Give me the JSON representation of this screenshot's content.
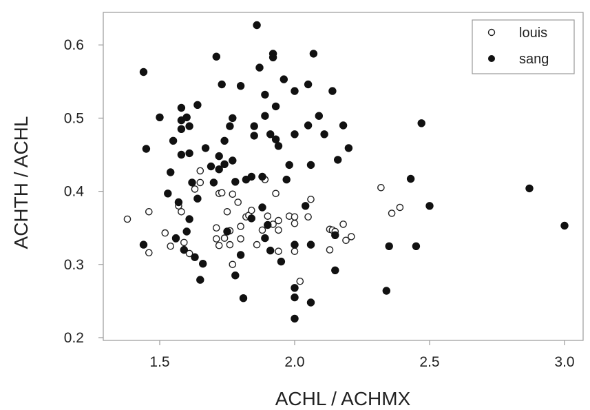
{
  "chart_data": {
    "type": "scatter",
    "xlabel": "ACHL / ACHMX",
    "ylabel": "ACHTH / ACHL",
    "xlim": [
      1.3,
      3.05
    ],
    "ylim": [
      0.2,
      0.65
    ],
    "x_ticks": [
      "1.5",
      "2.0",
      "2.5",
      "3.0"
    ],
    "y_ticks": [
      "0.2",
      "0.3",
      "0.4",
      "0.5",
      "0.6"
    ],
    "grid": false,
    "legend_position": "top-right",
    "series": [
      {
        "name": "louis",
        "marker": "open-circle",
        "color": "#222222",
        "points": [
          [
            1.38,
            0.362
          ],
          [
            1.46,
            0.372
          ],
          [
            1.46,
            0.316
          ],
          [
            1.52,
            0.343
          ],
          [
            1.54,
            0.325
          ],
          [
            1.56,
            0.335
          ],
          [
            1.57,
            0.38
          ],
          [
            1.58,
            0.372
          ],
          [
            1.59,
            0.33
          ],
          [
            1.61,
            0.315
          ],
          [
            1.63,
            0.403
          ],
          [
            1.65,
            0.428
          ],
          [
            1.65,
            0.412
          ],
          [
            1.71,
            0.35
          ],
          [
            1.71,
            0.335
          ],
          [
            1.72,
            0.326
          ],
          [
            1.72,
            0.397
          ],
          [
            1.73,
            0.398
          ],
          [
            1.74,
            0.336
          ],
          [
            1.75,
            0.372
          ],
          [
            1.76,
            0.346
          ],
          [
            1.76,
            0.327
          ],
          [
            1.77,
            0.396
          ],
          [
            1.77,
            0.3
          ],
          [
            1.79,
            0.385
          ],
          [
            1.8,
            0.352
          ],
          [
            1.8,
            0.335
          ],
          [
            1.82,
            0.365
          ],
          [
            1.83,
            0.367
          ],
          [
            1.84,
            0.374
          ],
          [
            1.86,
            0.327
          ],
          [
            1.88,
            0.347
          ],
          [
            1.89,
            0.416
          ],
          [
            1.9,
            0.366
          ],
          [
            1.92,
            0.355
          ],
          [
            1.93,
            0.397
          ],
          [
            1.94,
            0.36
          ],
          [
            1.94,
            0.347
          ],
          [
            1.94,
            0.318
          ],
          [
            1.98,
            0.366
          ],
          [
            2.0,
            0.365
          ],
          [
            2.0,
            0.356
          ],
          [
            2.0,
            0.318
          ],
          [
            2.02,
            0.277
          ],
          [
            2.05,
            0.365
          ],
          [
            2.06,
            0.389
          ],
          [
            2.13,
            0.348
          ],
          [
            2.13,
            0.32
          ],
          [
            2.14,
            0.347
          ],
          [
            2.15,
            0.345
          ],
          [
            2.18,
            0.355
          ],
          [
            2.19,
            0.333
          ],
          [
            2.21,
            0.338
          ],
          [
            2.32,
            0.405
          ],
          [
            2.36,
            0.37
          ],
          [
            2.39,
            0.378
          ]
        ]
      },
      {
        "name": "sang",
        "marker": "filled-circle",
        "color": "#111111",
        "points": [
          [
            1.44,
            0.327
          ],
          [
            1.44,
            0.563
          ],
          [
            1.45,
            0.458
          ],
          [
            1.5,
            0.501
          ],
          [
            1.53,
            0.397
          ],
          [
            1.54,
            0.426
          ],
          [
            1.55,
            0.469
          ],
          [
            1.56,
            0.336
          ],
          [
            1.57,
            0.385
          ],
          [
            1.58,
            0.514
          ],
          [
            1.58,
            0.497
          ],
          [
            1.58,
            0.485
          ],
          [
            1.58,
            0.45
          ],
          [
            1.59,
            0.32
          ],
          [
            1.6,
            0.501
          ],
          [
            1.6,
            0.345
          ],
          [
            1.61,
            0.362
          ],
          [
            1.61,
            0.489
          ],
          [
            1.61,
            0.452
          ],
          [
            1.62,
            0.412
          ],
          [
            1.63,
            0.31
          ],
          [
            1.64,
            0.518
          ],
          [
            1.64,
            0.39
          ],
          [
            1.65,
            0.279
          ],
          [
            1.66,
            0.301
          ],
          [
            1.67,
            0.459
          ],
          [
            1.69,
            0.434
          ],
          [
            1.7,
            0.412
          ],
          [
            1.71,
            0.584
          ],
          [
            1.72,
            0.448
          ],
          [
            1.72,
            0.43
          ],
          [
            1.73,
            0.546
          ],
          [
            1.74,
            0.469
          ],
          [
            1.74,
            0.437
          ],
          [
            1.75,
            0.345
          ],
          [
            1.76,
            0.489
          ],
          [
            1.77,
            0.5
          ],
          [
            1.77,
            0.442
          ],
          [
            1.78,
            0.413
          ],
          [
            1.78,
            0.285
          ],
          [
            1.8,
            0.544
          ],
          [
            1.8,
            0.313
          ],
          [
            1.81,
            0.254
          ],
          [
            1.82,
            0.416
          ],
          [
            1.84,
            0.42
          ],
          [
            1.84,
            0.363
          ],
          [
            1.85,
            0.489
          ],
          [
            1.85,
            0.476
          ],
          [
            1.86,
            0.627
          ],
          [
            1.87,
            0.569
          ],
          [
            1.88,
            0.42
          ],
          [
            1.88,
            0.378
          ],
          [
            1.89,
            0.532
          ],
          [
            1.89,
            0.503
          ],
          [
            1.89,
            0.336
          ],
          [
            1.9,
            0.354
          ],
          [
            1.91,
            0.319
          ],
          [
            1.91,
            0.478
          ],
          [
            1.92,
            0.588
          ],
          [
            1.92,
            0.583
          ],
          [
            1.93,
            0.471
          ],
          [
            1.93,
            0.516
          ],
          [
            1.94,
            0.462
          ],
          [
            1.95,
            0.304
          ],
          [
            1.96,
            0.553
          ],
          [
            1.97,
            0.416
          ],
          [
            1.98,
            0.436
          ],
          [
            2.0,
            0.537
          ],
          [
            2.0,
            0.478
          ],
          [
            2.0,
            0.327
          ],
          [
            2.0,
            0.268
          ],
          [
            2.0,
            0.255
          ],
          [
            2.0,
            0.226
          ],
          [
            2.04,
            0.38
          ],
          [
            2.05,
            0.546
          ],
          [
            2.05,
            0.49
          ],
          [
            2.06,
            0.436
          ],
          [
            2.06,
            0.327
          ],
          [
            2.06,
            0.248
          ],
          [
            2.07,
            0.588
          ],
          [
            2.09,
            0.503
          ],
          [
            2.11,
            0.478
          ],
          [
            2.14,
            0.537
          ],
          [
            2.15,
            0.292
          ],
          [
            2.16,
            0.443
          ],
          [
            2.18,
            0.49
          ],
          [
            2.2,
            0.459
          ],
          [
            2.15,
            0.34
          ],
          [
            2.34,
            0.264
          ],
          [
            2.35,
            0.325
          ],
          [
            2.43,
            0.417
          ],
          [
            2.45,
            0.325
          ],
          [
            2.47,
            0.493
          ],
          [
            2.5,
            0.38
          ],
          [
            2.87,
            0.404
          ],
          [
            3.0,
            0.353
          ]
        ]
      }
    ]
  }
}
